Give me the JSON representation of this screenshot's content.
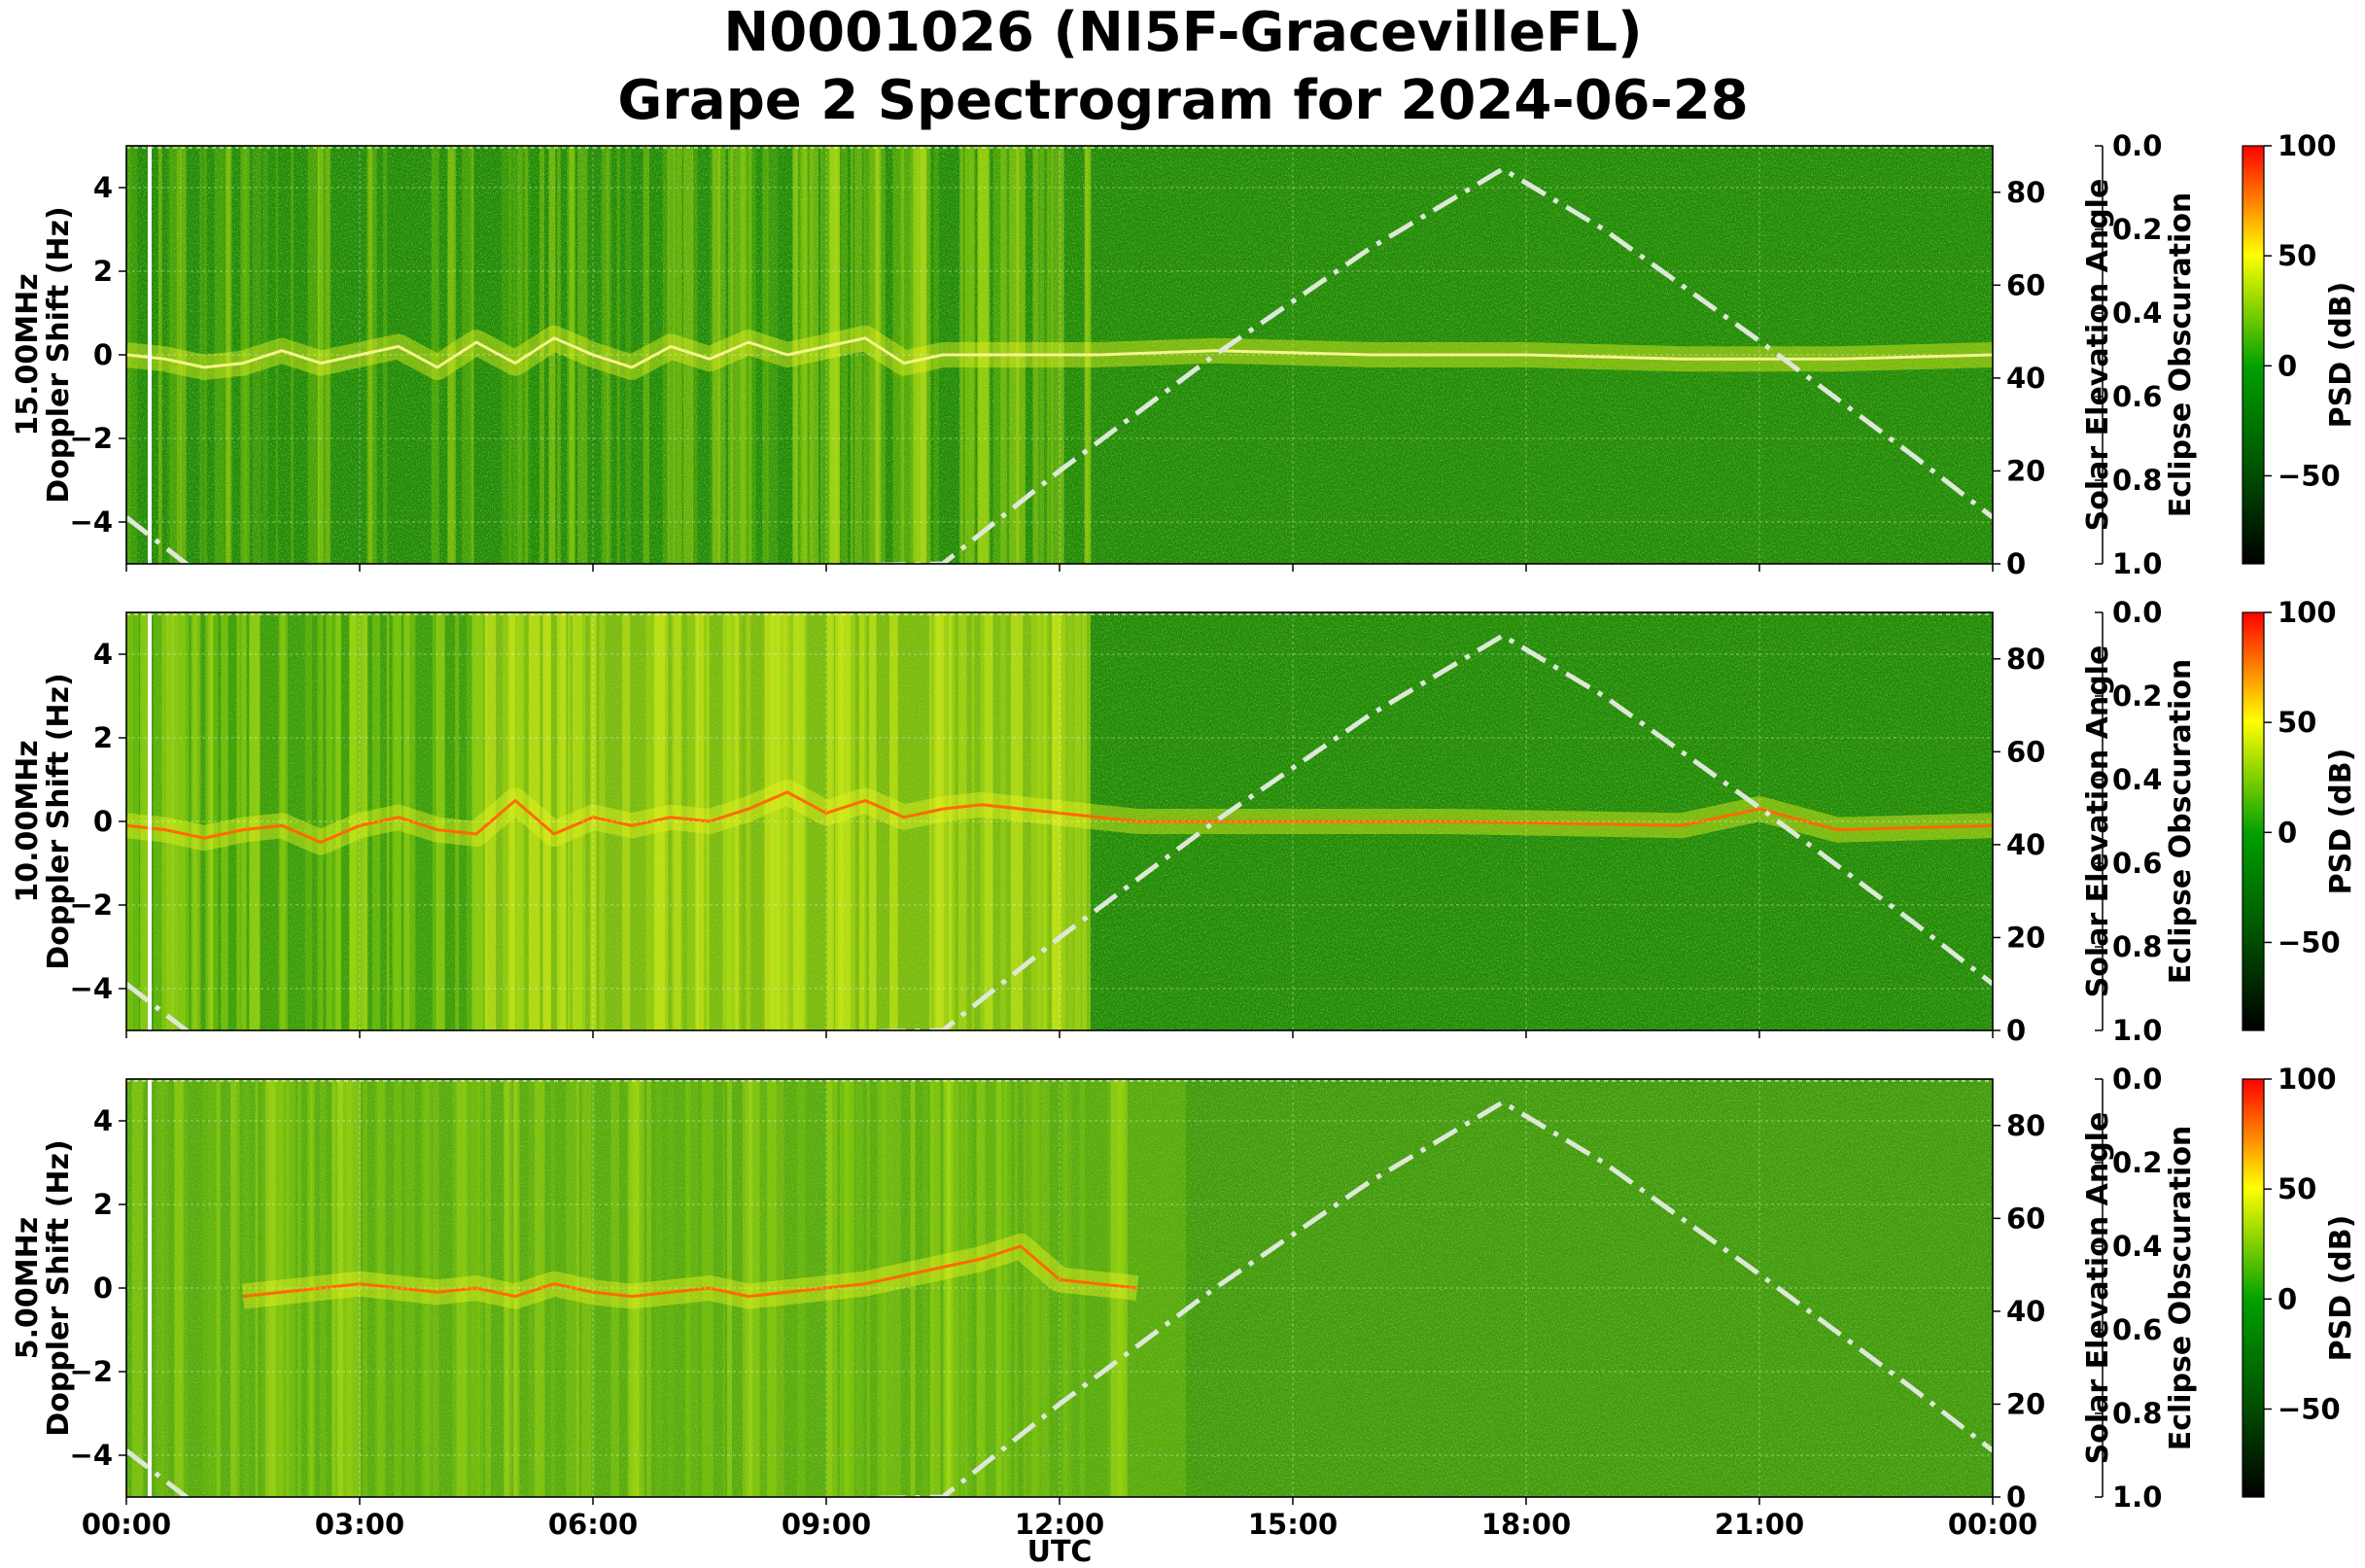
{
  "title_line1": "N0001026 (NI5F-GracevilleFL)",
  "title_line2": "Grape 2 Spectrogram for 2024-06-28",
  "x_axis": {
    "label": "UTC",
    "ticks": [
      "00:00",
      "03:00",
      "06:00",
      "09:00",
      "12:00",
      "15:00",
      "18:00",
      "21:00",
      "00:00"
    ],
    "range_hours": [
      0,
      24
    ]
  },
  "right_axis": {
    "label": "Solar Elevation Angle",
    "ticks": [
      "0",
      "20",
      "40",
      "60",
      "80"
    ],
    "range": [
      0,
      90
    ]
  },
  "eclipse_axis": {
    "label": "Eclipse Obscuration",
    "ticks": [
      "0.0",
      "0.2",
      "0.4",
      "0.6",
      "0.8",
      "1.0"
    ],
    "range": [
      0,
      1
    ]
  },
  "colorbar": {
    "label": "PSD (dB)",
    "ticks": [
      "100",
      "50",
      "0",
      "−50"
    ],
    "range": [
      -90,
      100
    ]
  },
  "doppler_ticks": [
    "4",
    "2",
    "0",
    "−2",
    "−4"
  ],
  "panels": [
    {
      "freq_label": "15.00MHz",
      "ylabel": "Doppler Shift (Hz)"
    },
    {
      "freq_label": "10.00MHz",
      "ylabel": "Doppler Shift (Hz)"
    },
    {
      "freq_label": "5.00MHz",
      "ylabel": "Doppler Shift (Hz)"
    }
  ],
  "chart_data": [
    {
      "type": "heatmap",
      "title": "15.00MHz",
      "xlabel": "",
      "ylabel": "Doppler Shift (Hz)",
      "xlim_utc_hours": [
        0,
        24
      ],
      "ylim": [
        -5,
        5
      ],
      "colormap": [
        "#000000",
        "#006400",
        "#00a000",
        "#ffff00",
        "#ff0000"
      ],
      "color_range_db": [
        -90,
        100
      ],
      "doppler_trace_hz": [
        [
          0.0,
          0.0
        ],
        [
          0.5,
          -0.1
        ],
        [
          1.0,
          -0.3
        ],
        [
          1.5,
          -0.2
        ],
        [
          2.0,
          0.1
        ],
        [
          2.5,
          -0.2
        ],
        [
          3.0,
          0.0
        ],
        [
          3.5,
          0.2
        ],
        [
          4.0,
          -0.3
        ],
        [
          4.5,
          0.3
        ],
        [
          5.0,
          -0.2
        ],
        [
          5.5,
          0.4
        ],
        [
          6.0,
          0.0
        ],
        [
          6.5,
          -0.3
        ],
        [
          7.0,
          0.2
        ],
        [
          7.5,
          -0.1
        ],
        [
          8.0,
          0.3
        ],
        [
          8.5,
          0.0
        ],
        [
          9.0,
          0.2
        ],
        [
          9.5,
          0.4
        ],
        [
          10.0,
          -0.2
        ],
        [
          10.5,
          0.0
        ],
        [
          12.5,
          0.0
        ],
        [
          14.0,
          0.1
        ],
        [
          16.0,
          0.0
        ],
        [
          18.0,
          0.0
        ],
        [
          20.0,
          -0.1
        ],
        [
          22.0,
          -0.1
        ],
        [
          24.0,
          0.0
        ]
      ],
      "solar_elevation_deg": [
        [
          0.0,
          10
        ],
        [
          1.0,
          -3
        ],
        [
          10.5,
          0
        ],
        [
          12.0,
          20
        ],
        [
          14.0,
          45
        ],
        [
          16.0,
          68
        ],
        [
          17.7,
          85
        ],
        [
          19.0,
          72
        ],
        [
          21.0,
          48
        ],
        [
          23.0,
          23
        ],
        [
          24.0,
          10
        ]
      ],
      "eclipse_obscuration": 0.0,
      "marker_utc_hours": 0.3
    },
    {
      "type": "heatmap",
      "title": "10.00MHz",
      "xlabel": "",
      "ylabel": "Doppler Shift (Hz)",
      "xlim_utc_hours": [
        0,
        24
      ],
      "ylim": [
        -5,
        5
      ],
      "colormap": [
        "#000000",
        "#006400",
        "#00a000",
        "#ffff00",
        "#ff0000"
      ],
      "color_range_db": [
        -90,
        100
      ],
      "doppler_trace_hz": [
        [
          0.0,
          -0.1
        ],
        [
          0.5,
          -0.2
        ],
        [
          1.0,
          -0.4
        ],
        [
          1.5,
          -0.2
        ],
        [
          2.0,
          -0.1
        ],
        [
          2.5,
          -0.5
        ],
        [
          3.0,
          -0.1
        ],
        [
          3.5,
          0.1
        ],
        [
          4.0,
          -0.2
        ],
        [
          4.5,
          -0.3
        ],
        [
          5.0,
          0.5
        ],
        [
          5.5,
          -0.3
        ],
        [
          6.0,
          0.1
        ],
        [
          6.5,
          -0.1
        ],
        [
          7.0,
          0.1
        ],
        [
          7.5,
          0.0
        ],
        [
          8.0,
          0.3
        ],
        [
          8.5,
          0.7
        ],
        [
          9.0,
          0.2
        ],
        [
          9.5,
          0.5
        ],
        [
          10.0,
          0.1
        ],
        [
          10.5,
          0.3
        ],
        [
          11.0,
          0.4
        ],
        [
          12.0,
          0.2
        ],
        [
          13.0,
          0.0
        ],
        [
          15.0,
          0.0
        ],
        [
          17.0,
          0.0
        ],
        [
          20.0,
          -0.1
        ],
        [
          21.0,
          0.3
        ],
        [
          22.0,
          -0.2
        ],
        [
          24.0,
          -0.1
        ]
      ],
      "solar_elevation_deg": [
        [
          0.0,
          10
        ],
        [
          1.0,
          -3
        ],
        [
          10.5,
          0
        ],
        [
          12.0,
          20
        ],
        [
          14.0,
          45
        ],
        [
          16.0,
          68
        ],
        [
          17.7,
          85
        ],
        [
          19.0,
          72
        ],
        [
          21.0,
          48
        ],
        [
          23.0,
          23
        ],
        [
          24.0,
          10
        ]
      ],
      "eclipse_obscuration": 0.0,
      "marker_utc_hours": 0.3
    },
    {
      "type": "heatmap",
      "title": "5.00MHz",
      "xlabel": "UTC",
      "ylabel": "Doppler Shift (Hz)",
      "xlim_utc_hours": [
        0,
        24
      ],
      "ylim": [
        -5,
        5
      ],
      "colormap": [
        "#000000",
        "#006400",
        "#00a000",
        "#ffff00",
        "#ff0000"
      ],
      "color_range_db": [
        -90,
        100
      ],
      "doppler_trace_hz": [
        [
          1.5,
          -0.2
        ],
        [
          2.0,
          -0.1
        ],
        [
          2.5,
          0.0
        ],
        [
          3.0,
          0.1
        ],
        [
          3.5,
          0.0
        ],
        [
          4.0,
          -0.1
        ],
        [
          4.5,
          0.0
        ],
        [
          5.0,
          -0.2
        ],
        [
          5.5,
          0.1
        ],
        [
          6.0,
          -0.1
        ],
        [
          6.5,
          -0.2
        ],
        [
          7.0,
          -0.1
        ],
        [
          7.5,
          0.0
        ],
        [
          8.0,
          -0.2
        ],
        [
          8.5,
          -0.1
        ],
        [
          9.0,
          0.0
        ],
        [
          9.5,
          0.1
        ],
        [
          10.0,
          0.3
        ],
        [
          10.5,
          0.5
        ],
        [
          11.0,
          0.7
        ],
        [
          11.5,
          1.0
        ],
        [
          12.0,
          0.2
        ],
        [
          13.0,
          0.0
        ]
      ],
      "solar_elevation_deg": [
        [
          0.0,
          10
        ],
        [
          1.0,
          -3
        ],
        [
          10.5,
          0
        ],
        [
          12.0,
          20
        ],
        [
          14.0,
          45
        ],
        [
          16.0,
          68
        ],
        [
          17.7,
          85
        ],
        [
          19.0,
          72
        ],
        [
          21.0,
          48
        ],
        [
          23.0,
          23
        ],
        [
          24.0,
          10
        ]
      ],
      "eclipse_obscuration": 0.0,
      "marker_utc_hours": 0.3
    }
  ]
}
